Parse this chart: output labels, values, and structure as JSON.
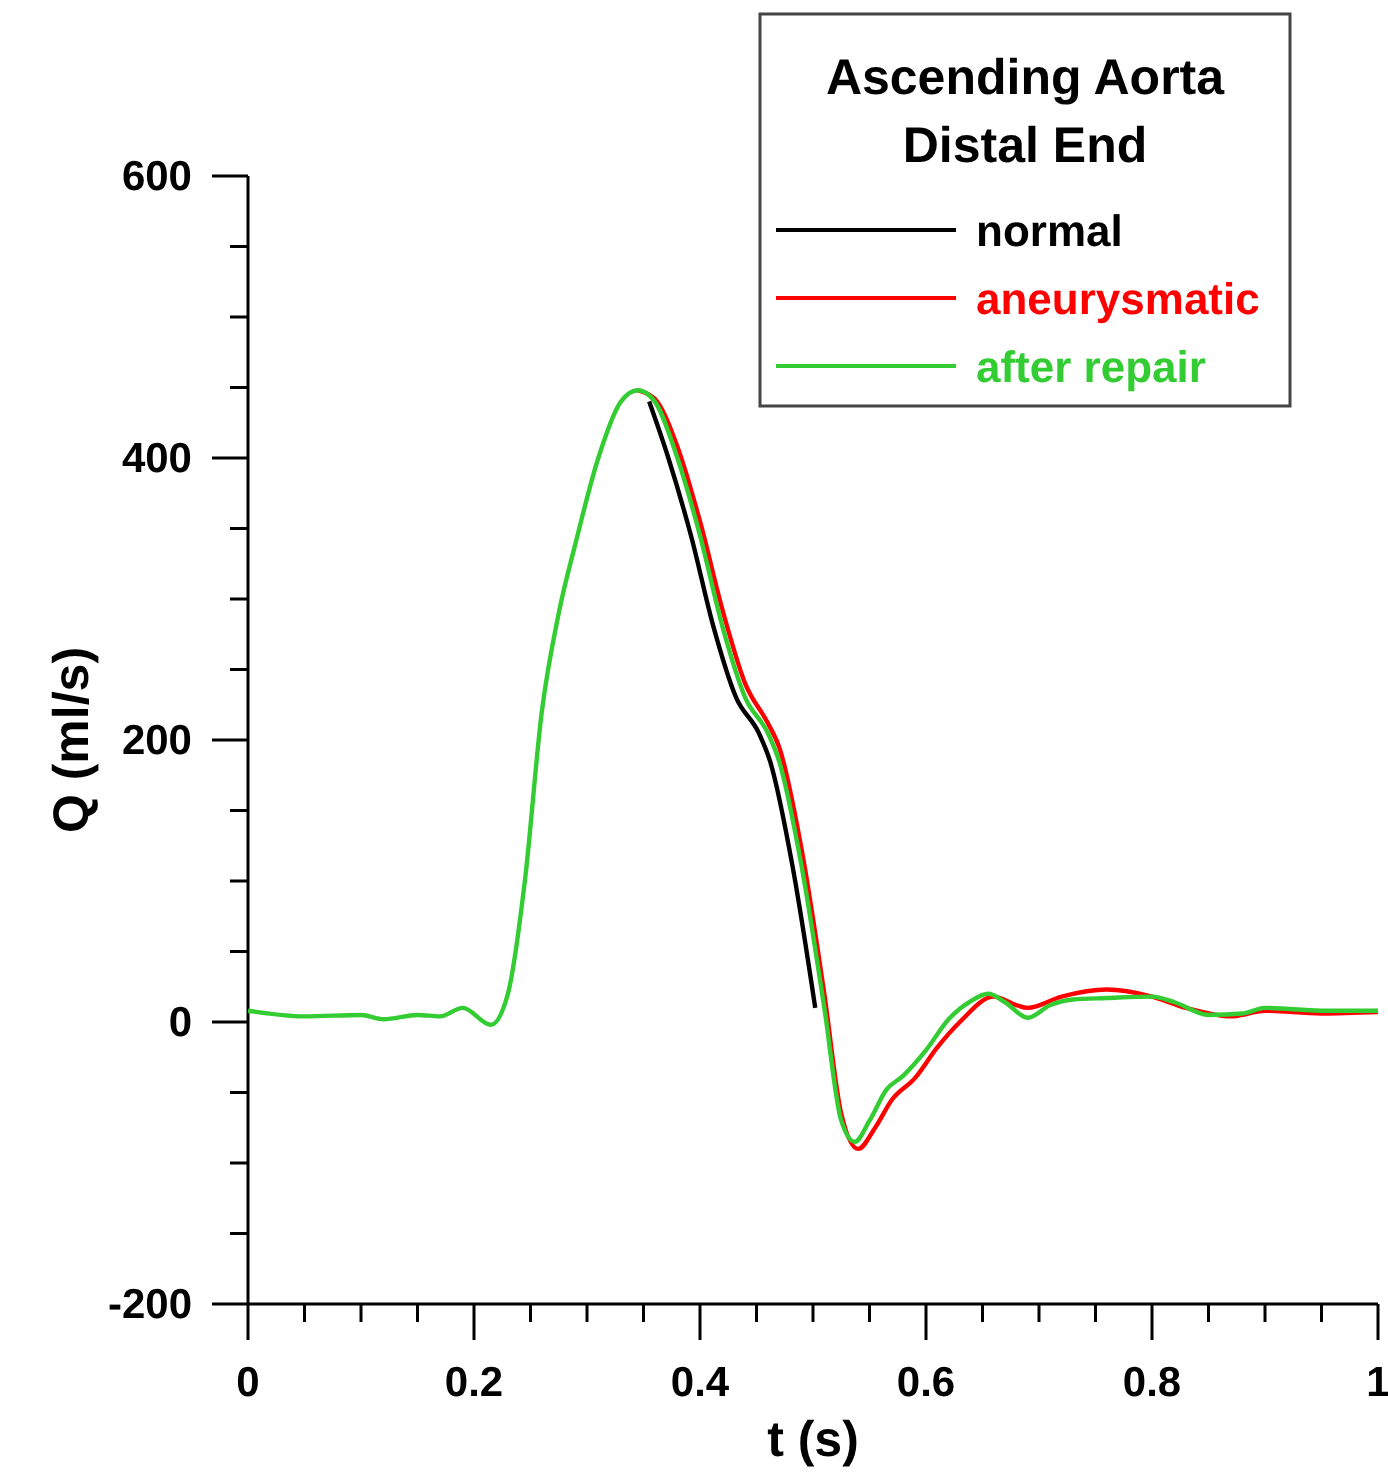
{
  "chart_data": {
    "type": "line",
    "xlabel": "t (s)",
    "ylabel": "Q (ml/s)",
    "legend_title": "Ascending Aorta\nDistal End",
    "legend": "top right",
    "grid": false,
    "marker": "none",
    "line_style": "solid",
    "xlim": [
      0,
      1
    ],
    "ylim": [
      -200,
      600
    ],
    "xticks": [
      0,
      {
        "value": 0.05,
        "label": null
      },
      0.2,
      {
        "value": 0.1,
        "label": null
      },
      {
        "value": 0.15,
        "label": null
      },
      {
        "value": 0.25,
        "label": null
      },
      {
        "value": 0.3,
        "label": null
      },
      {
        "value": 0.35,
        "label": null
      },
      0.4,
      {
        "value": 0.45,
        "label": null
      },
      {
        "value": 0.5,
        "label": null
      },
      {
        "value": 0.55,
        "label": null
      },
      0.6,
      {
        "value": 0.65,
        "label": null
      },
      {
        "value": 0.7,
        "label": null
      },
      {
        "value": 0.75,
        "label": null
      },
      0.8,
      {
        "value": 0.85,
        "label": null
      },
      {
        "value": 0.9,
        "label": null
      },
      {
        "value": 0.95,
        "label": null
      },
      1
    ],
    "yticks": [
      -200,
      {
        "value": -150,
        "label": null
      },
      {
        "value": -100,
        "label": null
      },
      {
        "value": -50,
        "label": null
      },
      0,
      {
        "value": 50,
        "label": null
      },
      {
        "value": 100,
        "label": null
      },
      {
        "value": 150,
        "label": null
      },
      200,
      {
        "value": 250,
        "label": null
      },
      {
        "value": 300,
        "label": null
      },
      {
        "value": 350,
        "label": null
      },
      400,
      {
        "value": 450,
        "label": null
      },
      {
        "value": 500,
        "label": null
      },
      {
        "value": 550,
        "label": null
      },
      600
    ],
    "series": [
      {
        "name": "normal",
        "color": "#000000",
        "x": [
          0.355,
          0.372,
          0.392,
          0.412,
          0.432,
          0.452,
          0.462,
          0.482,
          0.502
        ],
        "values": [
          440,
          400,
          345,
          280,
          230,
          205,
          185,
          110,
          10
        ]
      },
      {
        "name": "aneurysmatic",
        "color": "#ff0000",
        "x": [
          0.345,
          0.36,
          0.38,
          0.4,
          0.42,
          0.44,
          0.46,
          0.47,
          0.49,
          0.51,
          0.525,
          0.54,
          0.555,
          0.57,
          0.59,
          0.61,
          0.63,
          0.66,
          0.68,
          0.69,
          0.72,
          0.76,
          0.8,
          0.83,
          0.87,
          0.9,
          0.95,
          1
        ],
        "values": [
          448,
          442,
          408,
          355,
          292,
          240,
          212,
          195,
          122,
          20,
          -65,
          -90,
          -75,
          -55,
          -40,
          -18,
          0,
          18,
          12,
          10,
          18,
          23,
          18,
          10,
          4,
          8,
          6,
          7
        ]
      },
      {
        "name": "after repair",
        "color": "#33cc33",
        "x": [
          0,
          0.05,
          0.1,
          0.12,
          0.15,
          0.17,
          0.19,
          0.215,
          0.23,
          0.245,
          0.26,
          0.275,
          0.29,
          0.31,
          0.33,
          0.345,
          0.36,
          0.38,
          0.4,
          0.42,
          0.44,
          0.46,
          0.47,
          0.49,
          0.51,
          0.525,
          0.537,
          0.55,
          0.565,
          0.58,
          0.6,
          0.62,
          0.64,
          0.655,
          0.67,
          0.69,
          0.71,
          0.73,
          0.76,
          0.8,
          0.82,
          0.85,
          0.88,
          0.9,
          0.95,
          1
        ],
        "values": [
          8,
          4,
          5,
          2,
          5,
          4,
          10,
          -2,
          20,
          100,
          220,
          290,
          340,
          400,
          440,
          448,
          440,
          400,
          345,
          280,
          230,
          205,
          185,
          110,
          10,
          -70,
          -85,
          -70,
          -48,
          -38,
          -20,
          2,
          15,
          20,
          14,
          3,
          12,
          16,
          17,
          18,
          14,
          5,
          6,
          10,
          8,
          8
        ]
      }
    ]
  }
}
